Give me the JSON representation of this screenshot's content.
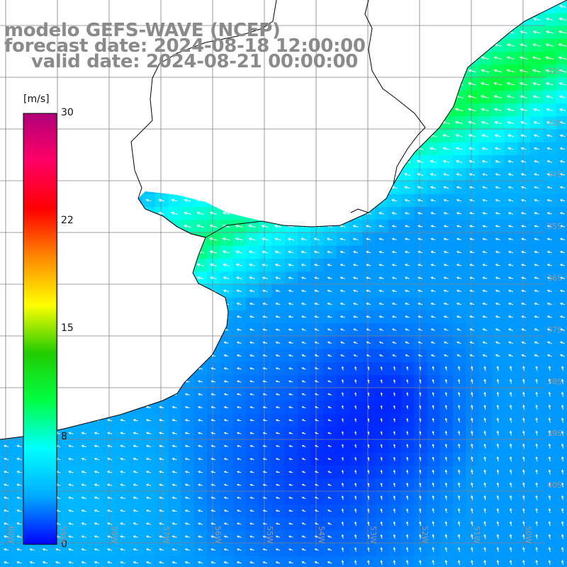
{
  "title": {
    "line1": "modelo GEFS-WAVE (NCEP)",
    "line2": "forecast date: 2024-08-18 12:00:00",
    "line3": "valid date: 2024-08-21 00:00:00"
  },
  "colorbar": {
    "unit": "[m/s]",
    "ticks": [
      "30",
      "22",
      "15",
      "8",
      "0"
    ],
    "stops": [
      "#0000ff",
      "#00aaff",
      "#00ffff",
      "#00ff44",
      "#22cc00",
      "#ffff00",
      "#ff8800",
      "#ff0000",
      "#ff0066",
      "#b0007a"
    ]
  },
  "map": {
    "lat_labels": [
      "32S",
      "33S",
      "34S",
      "35S",
      "36S",
      "37S",
      "38S",
      "39S",
      "40S"
    ],
    "lon_labels": [
      "60W",
      "59W",
      "58W",
      "57W",
      "56W",
      "55W",
      "54W",
      "53W",
      "52W",
      "51W",
      "50W"
    ],
    "land_color": "#ffffff",
    "grid_color": "#808080",
    "coast_color": "#000000",
    "arrow_color": "#ffffff"
  }
}
